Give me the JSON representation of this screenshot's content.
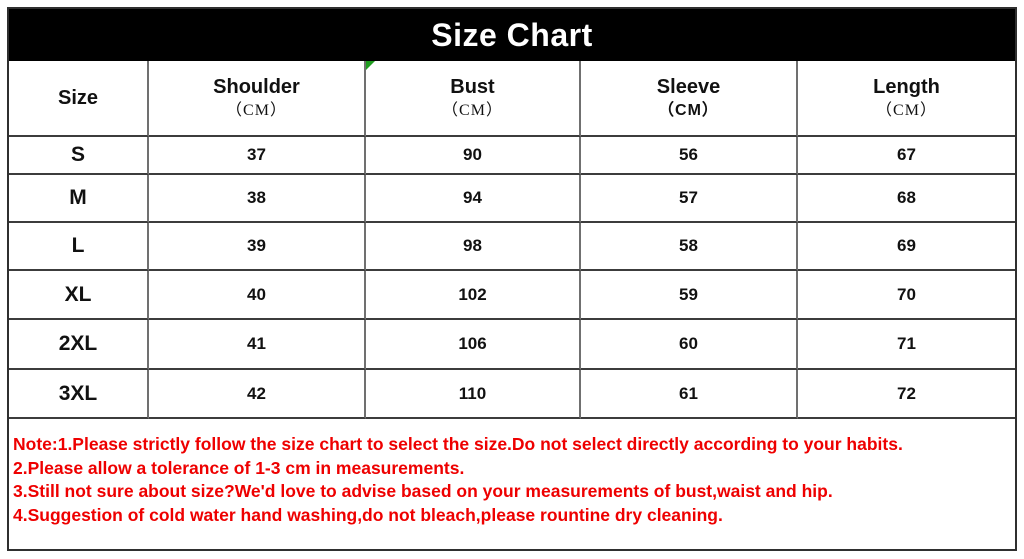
{
  "title": "Size Chart",
  "table": {
    "columns": [
      {
        "label": "Size",
        "unit": ""
      },
      {
        "label": "Shoulder",
        "unit": "（CM）"
      },
      {
        "label": "Bust",
        "unit": "（CM）"
      },
      {
        "label": "Sleeve",
        "unit": "（CM）"
      },
      {
        "label": "Length",
        "unit": "（CM）"
      }
    ],
    "rows": [
      [
        "S",
        "37",
        "90",
        "56",
        "67"
      ],
      [
        "M",
        "38",
        "94",
        "57",
        "68"
      ],
      [
        "L",
        "39",
        "98",
        "58",
        "69"
      ],
      [
        "XL",
        "40",
        "102",
        "59",
        "70"
      ],
      [
        "2XL",
        "41",
        "106",
        "60",
        "71"
      ],
      [
        "3XL",
        "42",
        "110",
        "61",
        "72"
      ]
    ]
  },
  "notes": {
    "lines": [
      "Note:1.Please strictly follow the size chart to select the size.Do not select directly according to your habits.",
      "2.Please allow a tolerance of 1-3 cm in measurements.",
      "3.Still not sure about size?We'd love to advise based on your measurements of bust,waist and hip.",
      "4.Suggestion of cold water hand washing,do not bleach,please rountine dry cleaning."
    ]
  },
  "colors": {
    "title_bg": "#000000",
    "title_text": "#ffffff",
    "note_red": "#ee0000",
    "marker_green": "#1f9c1f",
    "grid_line_vertical": "#707070",
    "grid_line_horizontal": "#3c3c3c"
  },
  "chart_data": {
    "type": "table",
    "title": "Size Chart",
    "columns": [
      "Size",
      "Shoulder (CM)",
      "Bust (CM)",
      "Sleeve (CM)",
      "Length (CM)"
    ],
    "rows": [
      [
        "S",
        37,
        90,
        56,
        67
      ],
      [
        "M",
        38,
        94,
        57,
        68
      ],
      [
        "L",
        39,
        98,
        58,
        69
      ],
      [
        "XL",
        40,
        102,
        59,
        70
      ],
      [
        "2XL",
        41,
        106,
        60,
        71
      ],
      [
        "3XL",
        42,
        110,
        61,
        72
      ]
    ],
    "notes": [
      "Note:1.Please strictly follow the size chart to select the size.Do not select directly according to your habits.",
      "2.Please allow a tolerance of 1-3 cm in measurements.",
      "3.Still not sure about size?We'd love to advise based on your measurements of bust,waist and hip.",
      "4.Suggestion of cold water hand washing,do not bleach,please rountine dry cleaning."
    ]
  }
}
